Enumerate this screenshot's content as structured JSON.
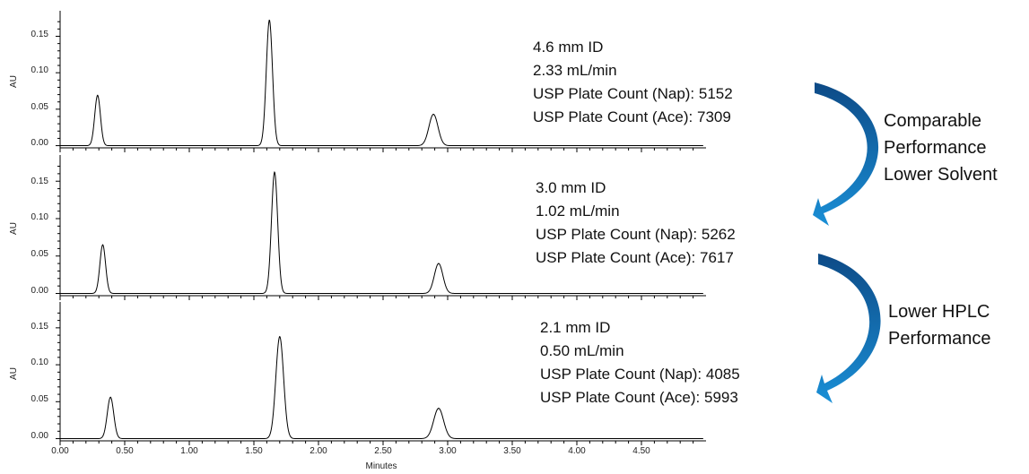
{
  "chart_data": {
    "type": "line",
    "xlabel": "Minutes",
    "xlim": [
      0,
      5.0
    ],
    "x_ticks": [
      "0.00",
      "0.50",
      "1.00",
      "1.50",
      "2.00",
      "2.50",
      "3.00",
      "3.50",
      "4.00",
      "4.50"
    ],
    "panels": [
      {
        "ylabel": "AU",
        "ylim": [
          -0.003,
          0.185
        ],
        "y_ticks": [
          "0.00",
          "0.05",
          "0.10",
          "0.15"
        ],
        "peaks": [
          {
            "rt": 0.29,
            "height": 0.069,
            "width": 0.022
          },
          {
            "rt": 1.62,
            "height": 0.172,
            "width": 0.024
          },
          {
            "rt": 2.89,
            "height": 0.043,
            "width": 0.035
          }
        ],
        "annotations": [
          "4.6 mm ID",
          "2.33 mL/min",
          "USP Plate Count (Nap): 5152",
          "USP Plate Count (Ace): 7309"
        ]
      },
      {
        "ylabel": "AU",
        "ylim": [
          -0.003,
          0.185
        ],
        "y_ticks": [
          "0.00",
          "0.05",
          "0.10",
          "0.15"
        ],
        "peaks": [
          {
            "rt": 0.33,
            "height": 0.065,
            "width": 0.022
          },
          {
            "rt": 1.66,
            "height": 0.162,
            "width": 0.024
          },
          {
            "rt": 2.93,
            "height": 0.04,
            "width": 0.033
          }
        ],
        "annotations": [
          "3.0 mm ID",
          "1.02 mL/min",
          "USP Plate Count (Nap): 5262",
          "USP Plate Count (Ace): 7617"
        ]
      },
      {
        "ylabel": "AU",
        "ylim": [
          -0.003,
          0.185
        ],
        "y_ticks": [
          "0.00",
          "0.05",
          "0.10",
          "0.15"
        ],
        "peaks": [
          {
            "rt": 0.39,
            "height": 0.056,
            "width": 0.025
          },
          {
            "rt": 1.7,
            "height": 0.138,
            "width": 0.03
          },
          {
            "rt": 2.93,
            "height": 0.041,
            "width": 0.038
          }
        ],
        "annotations": [
          "2.1 mm ID",
          "0.50 mL/min",
          "USP Plate Count (Nap): 4085",
          "USP Plate Count (Ace): 5993"
        ]
      }
    ]
  },
  "notes": [
    {
      "lines": [
        "Comparable",
        "Performance",
        "Lower Solvent"
      ]
    },
    {
      "lines": [
        "Lower HPLC",
        "Performance"
      ]
    }
  ],
  "colors": {
    "trace": "#000000",
    "arrow_light": "#1a8fd6",
    "arrow_dark": "#0d4a86"
  }
}
